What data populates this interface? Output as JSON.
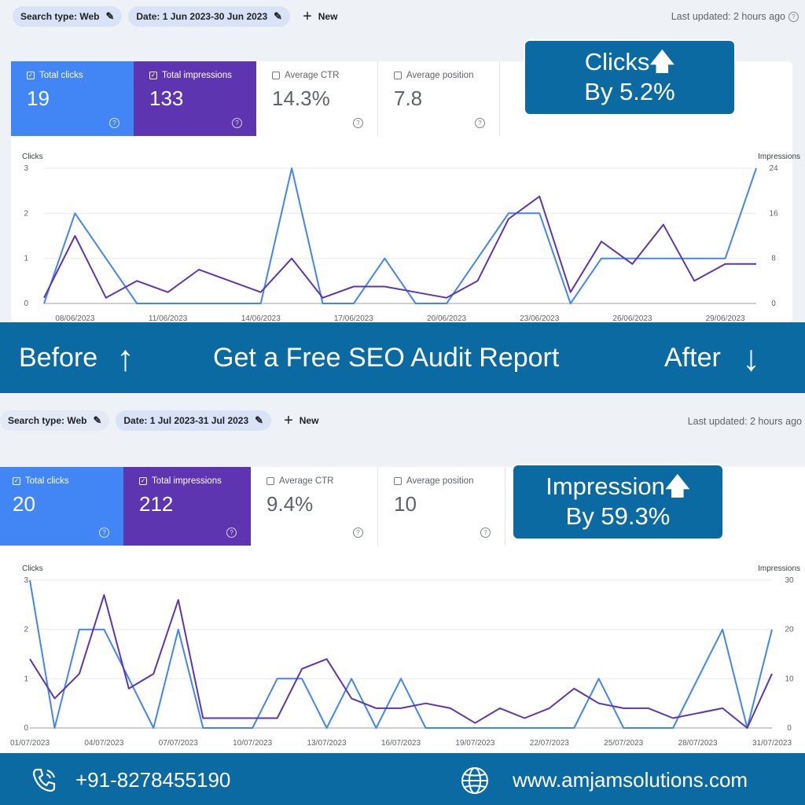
{
  "colors": {
    "clicks": "#4285f4",
    "impressions": "#5e35b1",
    "brand": "#0b6aa2"
  },
  "before": {
    "filters": {
      "search_type": "Search type: Web",
      "date": "Date: 1 Jun 2023-30 Jun 2023",
      "new": "New"
    },
    "last_updated": "Last updated: 2 hours ago",
    "metrics": [
      {
        "label": "Total clicks",
        "value": "19",
        "checked": true
      },
      {
        "label": "Total impressions",
        "value": "133",
        "checked": true
      },
      {
        "label": "Average CTR",
        "value": "14.3%",
        "checked": false
      },
      {
        "label": "Average position",
        "value": "7.8",
        "checked": false
      }
    ],
    "callout": {
      "line1": "Clicks",
      "arrow": "🡅",
      "line2": "By 5.2%"
    }
  },
  "after": {
    "filters": {
      "search_type": "Search type: Web",
      "date": "Date: 1 Jul 2023-31 Jul 2023",
      "new": "New"
    },
    "last_updated": "Last updated: 2 hours ago",
    "metrics": [
      {
        "label": "Total clicks",
        "value": "20",
        "checked": true
      },
      {
        "label": "Total impressions",
        "value": "212",
        "checked": true
      },
      {
        "label": "Average CTR",
        "value": "9.4%",
        "checked": false
      },
      {
        "label": "Average position",
        "value": "10",
        "checked": false
      }
    ],
    "callout": {
      "line1": "Impression",
      "arrow": "🡅",
      "line2": "By 59.3%"
    }
  },
  "banner": {
    "before": "Before",
    "before_arrow": "↑",
    "cta": "Get a Free SEO Audit Report",
    "after": "After",
    "after_arrow": "↓"
  },
  "footer": {
    "phone": "+91-8278455190",
    "website": "www.amjamsolutions.com"
  },
  "chart_data": [
    {
      "type": "line",
      "ylabel": "Clicks",
      "y2label": "Impressions",
      "ylim": [
        0,
        3
      ],
      "y2lim": [
        0,
        24
      ],
      "yticks": [
        0,
        1,
        2,
        3
      ],
      "y2ticks": [
        0,
        8,
        16,
        24
      ],
      "x": [
        "07/06/2023",
        "08/06/2023",
        "09/06/2023",
        "10/06/2023",
        "11/06/2023",
        "12/06/2023",
        "13/06/2023",
        "14/06/2023",
        "15/06/2023",
        "16/06/2023",
        "17/06/2023",
        "18/06/2023",
        "19/06/2023",
        "20/06/2023",
        "21/06/2023",
        "22/06/2023",
        "23/06/2023",
        "24/06/2023",
        "25/06/2023",
        "26/06/2023",
        "27/06/2023",
        "28/06/2023",
        "29/06/2023",
        "30/06/2023"
      ],
      "xtick_labels": [
        "08/06/2023",
        "11/06/2023",
        "14/06/2023",
        "17/06/2023",
        "20/06/2023",
        "23/06/2023",
        "26/06/2023",
        "29/06/2023"
      ],
      "series": [
        {
          "name": "Clicks",
          "axis": "left",
          "values": [
            0,
            2,
            1,
            0,
            0,
            0,
            0,
            0,
            3,
            0,
            0,
            1,
            0,
            0,
            1,
            2,
            2,
            0,
            1,
            1,
            1,
            1,
            1,
            3
          ]
        },
        {
          "name": "Impressions",
          "axis": "right",
          "values": [
            1,
            12,
            1,
            4,
            2,
            6,
            4,
            2,
            8,
            1,
            3,
            3,
            2,
            1,
            4,
            15,
            19,
            2,
            11,
            7,
            14,
            4,
            7,
            7
          ]
        }
      ],
      "grid": true
    },
    {
      "type": "line",
      "ylabel": "Clicks",
      "y2label": "Impressions",
      "ylim": [
        0,
        3
      ],
      "y2lim": [
        0,
        30
      ],
      "yticks": [
        0,
        1,
        2,
        3
      ],
      "y2ticks": [
        0,
        10,
        20,
        30
      ],
      "x": [
        "01/07/2023",
        "02/07/2023",
        "03/07/2023",
        "04/07/2023",
        "05/07/2023",
        "06/07/2023",
        "07/07/2023",
        "08/07/2023",
        "09/07/2023",
        "10/07/2023",
        "11/07/2023",
        "12/07/2023",
        "13/07/2023",
        "14/07/2023",
        "15/07/2023",
        "16/07/2023",
        "17/07/2023",
        "18/07/2023",
        "19/07/2023",
        "20/07/2023",
        "21/07/2023",
        "22/07/2023",
        "23/07/2023",
        "24/07/2023",
        "25/07/2023",
        "26/07/2023",
        "27/07/2023",
        "28/07/2023",
        "29/07/2023",
        "30/07/2023",
        "31/07/2023"
      ],
      "xtick_labels": [
        "01/07/2023",
        "04/07/2023",
        "07/07/2023",
        "10/07/2023",
        "13/07/2023",
        "16/07/2023",
        "19/07/2023",
        "22/07/2023",
        "25/07/2023",
        "28/07/2023",
        "31/07/2023"
      ],
      "series": [
        {
          "name": "Clicks",
          "axis": "left",
          "values": [
            3,
            0,
            2,
            2,
            1,
            0,
            2,
            0,
            0,
            0,
            1,
            1,
            0,
            1,
            0,
            1,
            0,
            0,
            0,
            0,
            0,
            0,
            0,
            1,
            0,
            0,
            0,
            1,
            2,
            0,
            2
          ]
        },
        {
          "name": "Impressions",
          "axis": "right",
          "values": [
            14,
            6,
            11,
            27,
            8,
            11,
            26,
            2,
            2,
            2,
            2,
            12,
            14,
            6,
            4,
            4,
            5,
            4,
            1,
            4,
            2,
            4,
            8,
            5,
            4,
            4,
            2,
            3,
            4,
            0,
            11
          ]
        }
      ],
      "grid": true
    }
  ]
}
